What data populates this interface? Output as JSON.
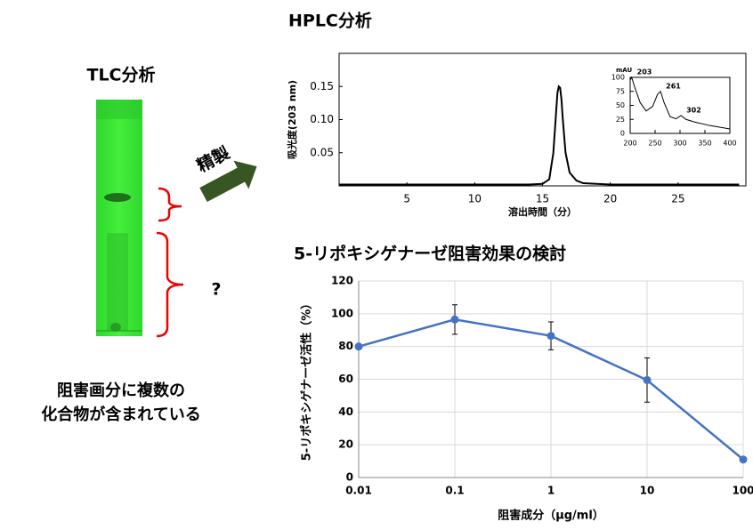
{
  "tlc": {
    "title": "TLC分析",
    "question": "?",
    "note": [
      "阻害画分に複数の",
      "化合物が含まれている"
    ]
  },
  "purification": "精製",
  "chart_data": [
    {
      "type": "line",
      "title": "HPLC分析",
      "xlabel": "溶出時間（分）",
      "ylabel": "吸光度(203 nm)",
      "x": [
        0,
        10,
        14,
        15,
        15.5,
        15.8,
        16,
        16.1,
        16.2,
        16.3,
        16.4,
        16.5,
        16.7,
        17,
        17.5,
        18,
        20,
        25,
        29.5
      ],
      "series": [
        {
          "color": "#000000",
          "values": [
            0.002,
            0.002,
            0.002,
            0.003,
            0.01,
            0.05,
            0.11,
            0.14,
            0.15,
            0.148,
            0.13,
            0.1,
            0.05,
            0.02,
            0.008,
            0.004,
            0.002,
            0.002,
            0.002
          ]
        }
      ],
      "xlim": [
        0,
        30
      ],
      "xticks": [
        5,
        10,
        15,
        20,
        25
      ],
      "ylim": [
        0,
        0.2
      ],
      "yticks": [
        0.05,
        {
          "value": 0.1,
          "label": "0.10"
        },
        0.15
      ],
      "grid": false
    },
    {
      "type": "line",
      "ylabel": "mAU",
      "x": [
        200,
        203,
        210,
        220,
        232,
        245,
        255,
        261,
        268,
        280,
        292,
        302,
        312,
        330,
        360,
        400
      ],
      "series": [
        {
          "color": "#000000",
          "values": [
            95,
            100,
            80,
            55,
            40,
            48,
            70,
            75,
            55,
            30,
            26,
            32,
            25,
            20,
            14,
            8
          ]
        }
      ],
      "peaks": [
        {
          "x": 203,
          "y": 100
        },
        {
          "x": 261,
          "y": 75
        },
        {
          "x": 302,
          "y": 32
        }
      ],
      "xlim": [
        200,
        400
      ],
      "xticks": [
        200,
        250,
        300,
        350,
        400
      ],
      "ylim": [
        0,
        100
      ],
      "yticks": [
        0,
        25,
        50,
        75,
        100
      ],
      "grid": false
    },
    {
      "type": "line",
      "title": "5-リポキシゲナーゼ阻害効果の検討",
      "xlabel": "阻害成分（μg/ml）",
      "ylabel": "5-リポキシゲナーゼ活性（%）",
      "x": [
        0.01,
        0.1,
        1,
        10,
        100
      ],
      "xlog": true,
      "series": [
        {
          "color": "#4472c4",
          "values": [
            80,
            96.5,
            86.5,
            59.5,
            11
          ],
          "errors": [
            0,
            9,
            8.5,
            13.5,
            0
          ]
        }
      ],
      "xlim": [
        0.01,
        100
      ],
      "xticks": [
        0.01,
        0.1,
        1,
        10,
        100
      ],
      "ylim": [
        0,
        120
      ],
      "yticks": [
        0,
        20,
        40,
        60,
        80,
        100,
        120
      ],
      "grid": true
    }
  ]
}
